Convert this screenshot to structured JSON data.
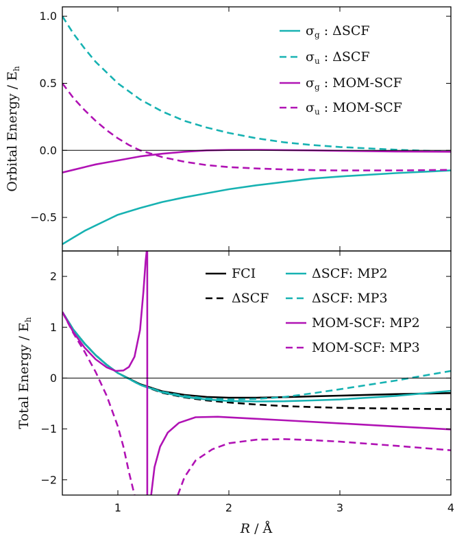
{
  "colors": {
    "teal": "#17b2b2",
    "magenta": "#b012b4",
    "black": "#000000"
  },
  "chart_data": [
    {
      "type": "line",
      "panel": "top",
      "ylabel": "Orbital Energy / E",
      "ylabel_sub": "h",
      "xlim": [
        0.5,
        4.0
      ],
      "ylim": [
        -0.75,
        1.07
      ],
      "xticks": [
        1,
        2,
        3,
        4
      ],
      "yticks": [
        1.0,
        0.5,
        0.0,
        -0.5
      ],
      "ytick_labels": [
        "1.0",
        "0.5",
        "0.0",
        "−0.5"
      ],
      "zero_line": true,
      "legend_position": "top-right",
      "series": [
        {
          "name": "σ",
          "sub": "g",
          "method": " : ΔSCF",
          "color": "#17b2b2",
          "dash": "solid",
          "x": [
            0.5,
            0.6,
            0.7,
            0.8,
            0.9,
            1.0,
            1.2,
            1.4,
            1.6,
            1.8,
            2.0,
            2.25,
            2.5,
            2.75,
            3.0,
            3.5,
            4.0
          ],
          "y": [
            -0.7,
            -0.65,
            -0.6,
            -0.56,
            -0.52,
            -0.48,
            -0.43,
            -0.385,
            -0.35,
            -0.32,
            -0.29,
            -0.26,
            -0.235,
            -0.21,
            -0.195,
            -0.17,
            -0.15
          ]
        },
        {
          "name": "σ",
          "sub": "u",
          "method": " : ΔSCF",
          "color": "#17b2b2",
          "dash": "dashed",
          "x": [
            0.5,
            0.6,
            0.7,
            0.8,
            0.9,
            1.0,
            1.2,
            1.4,
            1.6,
            1.8,
            2.0,
            2.25,
            2.5,
            2.75,
            3.0,
            3.5,
            4.0
          ],
          "y": [
            1.0,
            0.87,
            0.76,
            0.66,
            0.58,
            0.5,
            0.38,
            0.29,
            0.22,
            0.17,
            0.13,
            0.09,
            0.06,
            0.04,
            0.025,
            0.005,
            -0.01
          ]
        },
        {
          "name": "σ",
          "sub": "g",
          "method": " : MOM-SCF",
          "color": "#b012b4",
          "dash": "solid",
          "x": [
            0.5,
            0.6,
            0.7,
            0.8,
            0.9,
            1.0,
            1.2,
            1.4,
            1.6,
            1.8,
            2.0,
            2.25,
            2.5,
            2.75,
            3.0,
            3.5,
            4.0
          ],
          "y": [
            -0.165,
            -0.145,
            -0.125,
            -0.105,
            -0.09,
            -0.075,
            -0.045,
            -0.025,
            -0.01,
            0.0,
            0.003,
            0.004,
            0.002,
            0.0,
            -0.003,
            -0.008,
            -0.01
          ]
        },
        {
          "name": "σ",
          "sub": "u",
          "method": " : MOM-SCF",
          "color": "#b012b4",
          "dash": "dashed",
          "x": [
            0.5,
            0.6,
            0.7,
            0.8,
            0.9,
            1.0,
            1.1,
            1.2,
            1.4,
            1.6,
            1.8,
            2.0,
            2.25,
            2.5,
            2.75,
            3.0,
            3.5,
            4.0
          ],
          "y": [
            0.5,
            0.39,
            0.3,
            0.22,
            0.15,
            0.09,
            0.04,
            0.0,
            -0.05,
            -0.085,
            -0.11,
            -0.125,
            -0.135,
            -0.142,
            -0.147,
            -0.15,
            -0.15,
            -0.145
          ]
        }
      ]
    },
    {
      "type": "line",
      "panel": "bottom",
      "xlabel": "R",
      "xlabel_unit": " / Å",
      "ylabel": "Total Energy / E",
      "ylabel_sub": "h",
      "xlim": [
        0.5,
        4.0
      ],
      "ylim": [
        -2.3,
        2.5
      ],
      "xticks": [
        1,
        2,
        3,
        4
      ],
      "yticks": [
        2,
        1,
        0,
        -1,
        -2
      ],
      "ytick_labels": [
        "2",
        "1",
        "0",
        "−1",
        "−2"
      ],
      "zero_line": true,
      "legend_position": "top-right",
      "series": [
        {
          "name": "FCI",
          "color": "#000000",
          "dash": "solid",
          "segments": [
            {
              "x": [
                0.5,
                0.6,
                0.7,
                0.8,
                0.9,
                1.0,
                1.2,
                1.4,
                1.6,
                1.8,
                2.0,
                2.25,
                2.5,
                2.75,
                3.0,
                3.5,
                4.0
              ],
              "y": [
                1.3,
                0.95,
                0.68,
                0.45,
                0.26,
                0.1,
                -0.12,
                -0.26,
                -0.33,
                -0.37,
                -0.385,
                -0.385,
                -0.375,
                -0.36,
                -0.345,
                -0.315,
                -0.295
              ]
            }
          ]
        },
        {
          "name": "ΔSCF",
          "color": "#000000",
          "dash": "dashed",
          "segments": [
            {
              "x": [
                0.5,
                0.6,
                0.7,
                0.8,
                0.9,
                1.0,
                1.2,
                1.4,
                1.6,
                1.8,
                2.0,
                2.25,
                2.5,
                2.75,
                3.0,
                3.5,
                4.0
              ],
              "y": [
                1.3,
                0.95,
                0.68,
                0.45,
                0.26,
                0.1,
                -0.13,
                -0.29,
                -0.38,
                -0.44,
                -0.48,
                -0.52,
                -0.55,
                -0.57,
                -0.585,
                -0.6,
                -0.61
              ]
            }
          ]
        },
        {
          "name": "ΔSCF: MP2",
          "color": "#17b2b2",
          "dash": "solid",
          "segments": [
            {
              "x": [
                0.5,
                0.6,
                0.7,
                0.8,
                0.9,
                1.0,
                1.2,
                1.4,
                1.6,
                1.8,
                2.0,
                2.25,
                2.5,
                2.75,
                3.0,
                3.5,
                4.0
              ],
              "y": [
                1.3,
                0.95,
                0.68,
                0.45,
                0.26,
                0.1,
                -0.13,
                -0.28,
                -0.37,
                -0.42,
                -0.45,
                -0.46,
                -0.455,
                -0.44,
                -0.42,
                -0.35,
                -0.25
              ]
            }
          ]
        },
        {
          "name": "ΔSCF: MP3",
          "color": "#17b2b2",
          "dash": "dashed",
          "segments": [
            {
              "x": [
                0.5,
                0.6,
                0.7,
                0.8,
                0.9,
                1.0,
                1.2,
                1.4,
                1.6,
                1.8,
                2.0,
                2.25,
                2.5,
                2.75,
                3.0,
                3.5,
                4.0
              ],
              "y": [
                1.3,
                0.95,
                0.68,
                0.45,
                0.26,
                0.1,
                -0.13,
                -0.27,
                -0.35,
                -0.4,
                -0.42,
                -0.41,
                -0.37,
                -0.3,
                -0.22,
                -0.05,
                0.14
              ]
            }
          ]
        },
        {
          "name": "MOM-SCF: MP2",
          "color": "#b012b4",
          "dash": "solid",
          "segments": [
            {
              "x": [
                0.5,
                0.6,
                0.7,
                0.8,
                0.9,
                0.98,
                1.05,
                1.1,
                1.15,
                1.2,
                1.23,
                1.25,
                1.26
              ],
              "y": [
                1.3,
                0.9,
                0.6,
                0.37,
                0.21,
                0.14,
                0.15,
                0.22,
                0.42,
                0.95,
                1.7,
                2.3,
                2.5
              ]
            },
            {
              "x": [
                1.265,
                1.265
              ],
              "y": [
                2.5,
                -2.3
              ]
            },
            {
              "x": [
                1.3,
                1.33,
                1.38,
                1.45,
                1.55,
                1.7,
                1.9,
                2.25,
                2.5,
                3.0,
                3.5,
                4.0
              ],
              "y": [
                -2.3,
                -1.75,
                -1.35,
                -1.07,
                -0.88,
                -0.77,
                -0.76,
                -0.8,
                -0.83,
                -0.89,
                -0.95,
                -1.01
              ]
            }
          ]
        },
        {
          "name": "MOM-SCF: MP3",
          "color": "#b012b4",
          "dash": "dashed",
          "segments": [
            {
              "x": [
                0.5,
                0.6,
                0.7,
                0.8,
                0.9,
                1.0,
                1.05,
                1.1,
                1.15
              ],
              "y": [
                1.3,
                0.88,
                0.52,
                0.12,
                -0.35,
                -0.95,
                -1.35,
                -1.85,
                -2.3
              ]
            },
            {
              "x": [
                1.54,
                1.6,
                1.7,
                1.85,
                2.0,
                2.25,
                2.5,
                2.75,
                3.0,
                3.5,
                4.0
              ],
              "y": [
                -2.3,
                -1.95,
                -1.62,
                -1.4,
                -1.28,
                -1.21,
                -1.2,
                -1.22,
                -1.25,
                -1.33,
                -1.42
              ]
            }
          ]
        }
      ]
    }
  ]
}
